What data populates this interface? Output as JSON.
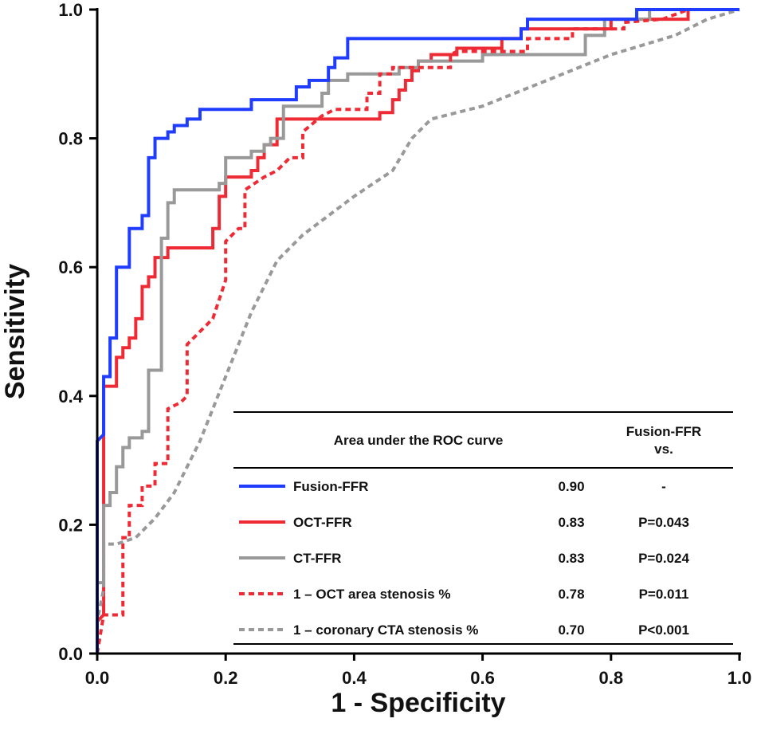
{
  "chart_data": {
    "type": "line",
    "title": "",
    "xlabel": "1 - Specificity",
    "ylabel": "Sensitivity",
    "xlim": [
      0,
      1
    ],
    "ylim": [
      0,
      1
    ],
    "xticks": [
      "0.0",
      "0.2",
      "0.4",
      "0.6",
      "0.8",
      "1.0"
    ],
    "yticks": [
      "0.0",
      "0.2",
      "0.4",
      "0.6",
      "0.8",
      "1.0"
    ],
    "grid": false,
    "legend": {
      "placement": "bottom-right",
      "header_left": "Area under the ROC curve",
      "header_right_line1": "Fusion-FFR",
      "header_right_line2": "vs."
    },
    "series": [
      {
        "name": "Fusion-FFR",
        "auc": "0.90",
        "p": "-",
        "color": "#1f3cff",
        "dash": false,
        "points": [
          [
            0,
            0
          ],
          [
            0,
            0.33
          ],
          [
            0.01,
            0.34
          ],
          [
            0.01,
            0.43
          ],
          [
            0.02,
            0.43
          ],
          [
            0.02,
            0.49
          ],
          [
            0.03,
            0.49
          ],
          [
            0.03,
            0.6
          ],
          [
            0.05,
            0.6
          ],
          [
            0.05,
            0.66
          ],
          [
            0.07,
            0.66
          ],
          [
            0.07,
            0.68
          ],
          [
            0.08,
            0.68
          ],
          [
            0.08,
            0.77
          ],
          [
            0.09,
            0.77
          ],
          [
            0.09,
            0.8
          ],
          [
            0.11,
            0.8
          ],
          [
            0.11,
            0.81
          ],
          [
            0.12,
            0.81
          ],
          [
            0.12,
            0.82
          ],
          [
            0.14,
            0.82
          ],
          [
            0.14,
            0.83
          ],
          [
            0.16,
            0.83
          ],
          [
            0.16,
            0.845
          ],
          [
            0.24,
            0.845
          ],
          [
            0.24,
            0.86
          ],
          [
            0.31,
            0.86
          ],
          [
            0.31,
            0.88
          ],
          [
            0.33,
            0.88
          ],
          [
            0.33,
            0.89
          ],
          [
            0.36,
            0.89
          ],
          [
            0.36,
            0.91
          ],
          [
            0.37,
            0.91
          ],
          [
            0.37,
            0.925
          ],
          [
            0.39,
            0.925
          ],
          [
            0.39,
            0.955
          ],
          [
            0.66,
            0.955
          ],
          [
            0.66,
            0.97
          ],
          [
            0.67,
            0.97
          ],
          [
            0.67,
            0.985
          ],
          [
            0.84,
            0.985
          ],
          [
            0.84,
            1
          ],
          [
            1,
            1
          ]
        ]
      },
      {
        "name": "OCT-FFR",
        "auc": "0.83",
        "p": "P=0.043",
        "color": "#ee2b35",
        "dash": false,
        "points": [
          [
            0,
            0
          ],
          [
            0,
            0.05
          ],
          [
            0.01,
            0.06
          ],
          [
            0.01,
            0.415
          ],
          [
            0.03,
            0.415
          ],
          [
            0.03,
            0.46
          ],
          [
            0.04,
            0.46
          ],
          [
            0.04,
            0.475
          ],
          [
            0.05,
            0.475
          ],
          [
            0.05,
            0.49
          ],
          [
            0.06,
            0.49
          ],
          [
            0.06,
            0.52
          ],
          [
            0.07,
            0.52
          ],
          [
            0.07,
            0.57
          ],
          [
            0.08,
            0.57
          ],
          [
            0.08,
            0.585
          ],
          [
            0.09,
            0.585
          ],
          [
            0.09,
            0.615
          ],
          [
            0.11,
            0.615
          ],
          [
            0.11,
            0.63
          ],
          [
            0.18,
            0.63
          ],
          [
            0.18,
            0.66
          ],
          [
            0.19,
            0.66
          ],
          [
            0.19,
            0.71
          ],
          [
            0.2,
            0.71
          ],
          [
            0.2,
            0.74
          ],
          [
            0.24,
            0.74
          ],
          [
            0.24,
            0.75
          ],
          [
            0.25,
            0.75
          ],
          [
            0.25,
            0.77
          ],
          [
            0.26,
            0.77
          ],
          [
            0.26,
            0.79
          ],
          [
            0.28,
            0.79
          ],
          [
            0.28,
            0.83
          ],
          [
            0.44,
            0.83
          ],
          [
            0.44,
            0.84
          ],
          [
            0.46,
            0.84
          ],
          [
            0.46,
            0.86
          ],
          [
            0.47,
            0.86
          ],
          [
            0.47,
            0.875
          ],
          [
            0.48,
            0.875
          ],
          [
            0.48,
            0.89
          ],
          [
            0.49,
            0.89
          ],
          [
            0.49,
            0.905
          ],
          [
            0.5,
            0.905
          ],
          [
            0.5,
            0.92
          ],
          [
            0.52,
            0.92
          ],
          [
            0.52,
            0.93
          ],
          [
            0.56,
            0.93
          ],
          [
            0.56,
            0.94
          ],
          [
            0.63,
            0.94
          ],
          [
            0.63,
            0.955
          ],
          [
            0.66,
            0.955
          ],
          [
            0.66,
            0.97
          ],
          [
            0.8,
            0.97
          ],
          [
            0.8,
            0.985
          ],
          [
            0.92,
            0.985
          ],
          [
            0.92,
            1
          ],
          [
            1,
            1
          ]
        ]
      },
      {
        "name": "CT-FFR",
        "auc": "0.83",
        "p": "P=0.024",
        "color": "#999999",
        "dash": false,
        "points": [
          [
            0,
            0
          ],
          [
            0,
            0.11
          ],
          [
            0.01,
            0.11
          ],
          [
            0.01,
            0.23
          ],
          [
            0.02,
            0.23
          ],
          [
            0.02,
            0.25
          ],
          [
            0.03,
            0.25
          ],
          [
            0.03,
            0.29
          ],
          [
            0.04,
            0.29
          ],
          [
            0.04,
            0.32
          ],
          [
            0.05,
            0.32
          ],
          [
            0.05,
            0.335
          ],
          [
            0.07,
            0.335
          ],
          [
            0.07,
            0.345
          ],
          [
            0.08,
            0.345
          ],
          [
            0.08,
            0.44
          ],
          [
            0.1,
            0.44
          ],
          [
            0.1,
            0.645
          ],
          [
            0.11,
            0.645
          ],
          [
            0.11,
            0.7
          ],
          [
            0.12,
            0.7
          ],
          [
            0.12,
            0.72
          ],
          [
            0.19,
            0.72
          ],
          [
            0.19,
            0.73
          ],
          [
            0.2,
            0.73
          ],
          [
            0.2,
            0.77
          ],
          [
            0.24,
            0.77
          ],
          [
            0.24,
            0.78
          ],
          [
            0.26,
            0.78
          ],
          [
            0.26,
            0.79
          ],
          [
            0.27,
            0.79
          ],
          [
            0.27,
            0.8
          ],
          [
            0.29,
            0.8
          ],
          [
            0.29,
            0.85
          ],
          [
            0.35,
            0.85
          ],
          [
            0.35,
            0.87
          ],
          [
            0.36,
            0.87
          ],
          [
            0.36,
            0.89
          ],
          [
            0.39,
            0.89
          ],
          [
            0.39,
            0.9
          ],
          [
            0.47,
            0.9
          ],
          [
            0.47,
            0.91
          ],
          [
            0.5,
            0.91
          ],
          [
            0.5,
            0.92
          ],
          [
            0.6,
            0.92
          ],
          [
            0.6,
            0.93
          ],
          [
            0.76,
            0.93
          ],
          [
            0.76,
            0.96
          ],
          [
            0.79,
            0.96
          ],
          [
            0.79,
            0.985
          ],
          [
            0.86,
            0.985
          ],
          [
            0.86,
            1
          ],
          [
            1,
            1
          ]
        ]
      },
      {
        "name": "1 – OCT area stenosis %",
        "auc": "0.78",
        "p": "P=0.011",
        "color": "#ee2b35",
        "dash": true,
        "points": [
          [
            0,
            0
          ],
          [
            0.01,
            0.06
          ],
          [
            0.04,
            0.06
          ],
          [
            0.04,
            0.18
          ],
          [
            0.05,
            0.18
          ],
          [
            0.05,
            0.23
          ],
          [
            0.07,
            0.23
          ],
          [
            0.07,
            0.26
          ],
          [
            0.09,
            0.26
          ],
          [
            0.09,
            0.295
          ],
          [
            0.11,
            0.295
          ],
          [
            0.11,
            0.38
          ],
          [
            0.13,
            0.39
          ],
          [
            0.14,
            0.4
          ],
          [
            0.14,
            0.48
          ],
          [
            0.16,
            0.5
          ],
          [
            0.18,
            0.52
          ],
          [
            0.19,
            0.55
          ],
          [
            0.2,
            0.58
          ],
          [
            0.2,
            0.64
          ],
          [
            0.22,
            0.66
          ],
          [
            0.23,
            0.66
          ],
          [
            0.23,
            0.72
          ],
          [
            0.26,
            0.74
          ],
          [
            0.28,
            0.75
          ],
          [
            0.3,
            0.77
          ],
          [
            0.32,
            0.77
          ],
          [
            0.32,
            0.81
          ],
          [
            0.35,
            0.835
          ],
          [
            0.37,
            0.845
          ],
          [
            0.42,
            0.845
          ],
          [
            0.42,
            0.87
          ],
          [
            0.44,
            0.87
          ],
          [
            0.44,
            0.9
          ],
          [
            0.46,
            0.9
          ],
          [
            0.46,
            0.91
          ],
          [
            0.55,
            0.91
          ],
          [
            0.55,
            0.93
          ],
          [
            0.56,
            0.935
          ],
          [
            0.67,
            0.935
          ],
          [
            0.67,
            0.955
          ],
          [
            0.74,
            0.955
          ],
          [
            0.74,
            0.97
          ],
          [
            0.82,
            0.97
          ],
          [
            0.82,
            0.98
          ],
          [
            0.88,
            0.985
          ],
          [
            0.92,
            1
          ],
          [
            1,
            1
          ]
        ]
      },
      {
        "name": "1 – coronary CTA stenosis %",
        "auc": "0.70",
        "p": "P<0.001",
        "color": "#999999",
        "dash": true,
        "points": [
          [
            0,
            0
          ],
          [
            0,
            0.05
          ],
          [
            0.01,
            0.1
          ],
          [
            0.01,
            0.17
          ],
          [
            0.03,
            0.17
          ],
          [
            0.06,
            0.18
          ],
          [
            0.09,
            0.21
          ],
          [
            0.12,
            0.25
          ],
          [
            0.16,
            0.33
          ],
          [
            0.2,
            0.43
          ],
          [
            0.24,
            0.53
          ],
          [
            0.28,
            0.61
          ],
          [
            0.32,
            0.65
          ],
          [
            0.4,
            0.71
          ],
          [
            0.46,
            0.75
          ],
          [
            0.49,
            0.8
          ],
          [
            0.52,
            0.83
          ],
          [
            0.6,
            0.85
          ],
          [
            0.7,
            0.89
          ],
          [
            0.8,
            0.93
          ],
          [
            0.9,
            0.96
          ],
          [
            0.95,
            0.985
          ],
          [
            1,
            1
          ]
        ]
      }
    ]
  }
}
